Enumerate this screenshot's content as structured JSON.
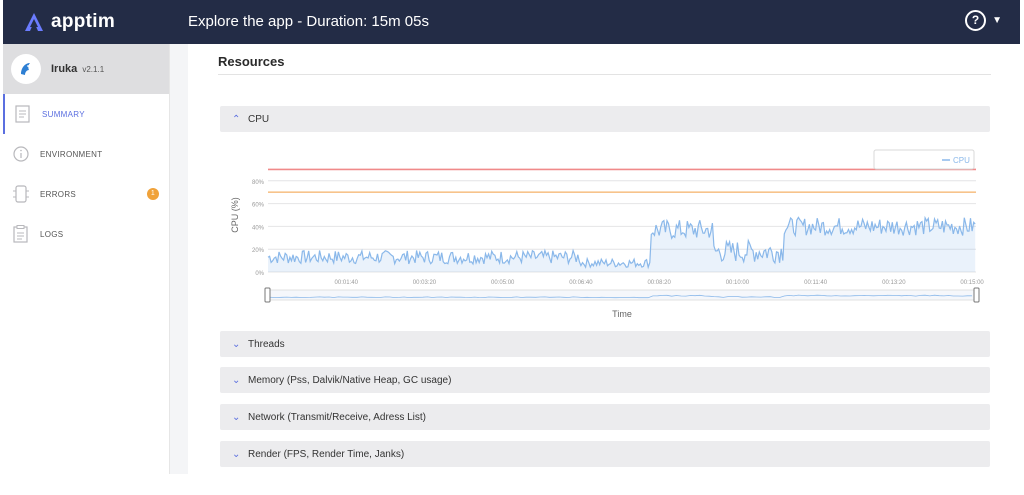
{
  "app": {
    "brand": "apptim",
    "session_title": "Explore the app - Duration: 15m 05s",
    "help_label": "?"
  },
  "sidebar": {
    "app_name": "Iruka",
    "app_version": "v2.1.1",
    "items": [
      {
        "label": "SUMMARY",
        "icon": "summary-icon"
      },
      {
        "label": "ENVIRONMENT",
        "icon": "info-icon"
      },
      {
        "label": "ERRORS",
        "icon": "errors-icon",
        "badge": "1"
      },
      {
        "label": "LOGS",
        "icon": "logs-icon"
      }
    ]
  },
  "main": {
    "title": "Resources",
    "panels": [
      {
        "label": "CPU",
        "expanded": true
      },
      {
        "label": "Threads"
      },
      {
        "label": "Memory (Pss, Dalvik/Native Heap, GC usage)"
      },
      {
        "label": "Network (Transmit/Receive, Adress List)"
      },
      {
        "label": "Render (FPS, Render Time, Janks)"
      }
    ]
  },
  "colors": {
    "topbar": "#232c46",
    "accent": "#5b6fe0",
    "series": "#8ab8ea",
    "threshold_high": "#f08a8a",
    "threshold_mid": "#f7c38b"
  },
  "chart_data": {
    "type": "line",
    "ylabel": "CPU (%)",
    "xlabel": "Time",
    "ylim": [
      0,
      100
    ],
    "yticks": [
      "0%",
      "20%",
      "40%",
      "60%",
      "80%"
    ],
    "yticks_values": [
      0,
      20,
      40,
      60,
      80
    ],
    "xticks": [
      "00:01:40",
      "00:03:20",
      "00:05:00",
      "00:06:40",
      "00:08:20",
      "00:10:00",
      "00:11:40",
      "00:13:20",
      "00:15:00"
    ],
    "thresholds": [
      90,
      70
    ],
    "legend": {
      "label": "CPU",
      "placement": "top-right"
    },
    "series": [
      {
        "name": "CPU",
        "segments": [
          {
            "from_s": 0,
            "to_s": 400,
            "level": 13,
            "noise": 6
          },
          {
            "from_s": 400,
            "to_s": 490,
            "level": 8,
            "noise": 4
          },
          {
            "from_s": 490,
            "to_s": 570,
            "level": 37,
            "noise": 9
          },
          {
            "from_s": 570,
            "to_s": 660,
            "level": 18,
            "noise": 10
          },
          {
            "from_s": 660,
            "to_s": 905,
            "level": 40,
            "noise": 8
          }
        ]
      }
    ]
  }
}
